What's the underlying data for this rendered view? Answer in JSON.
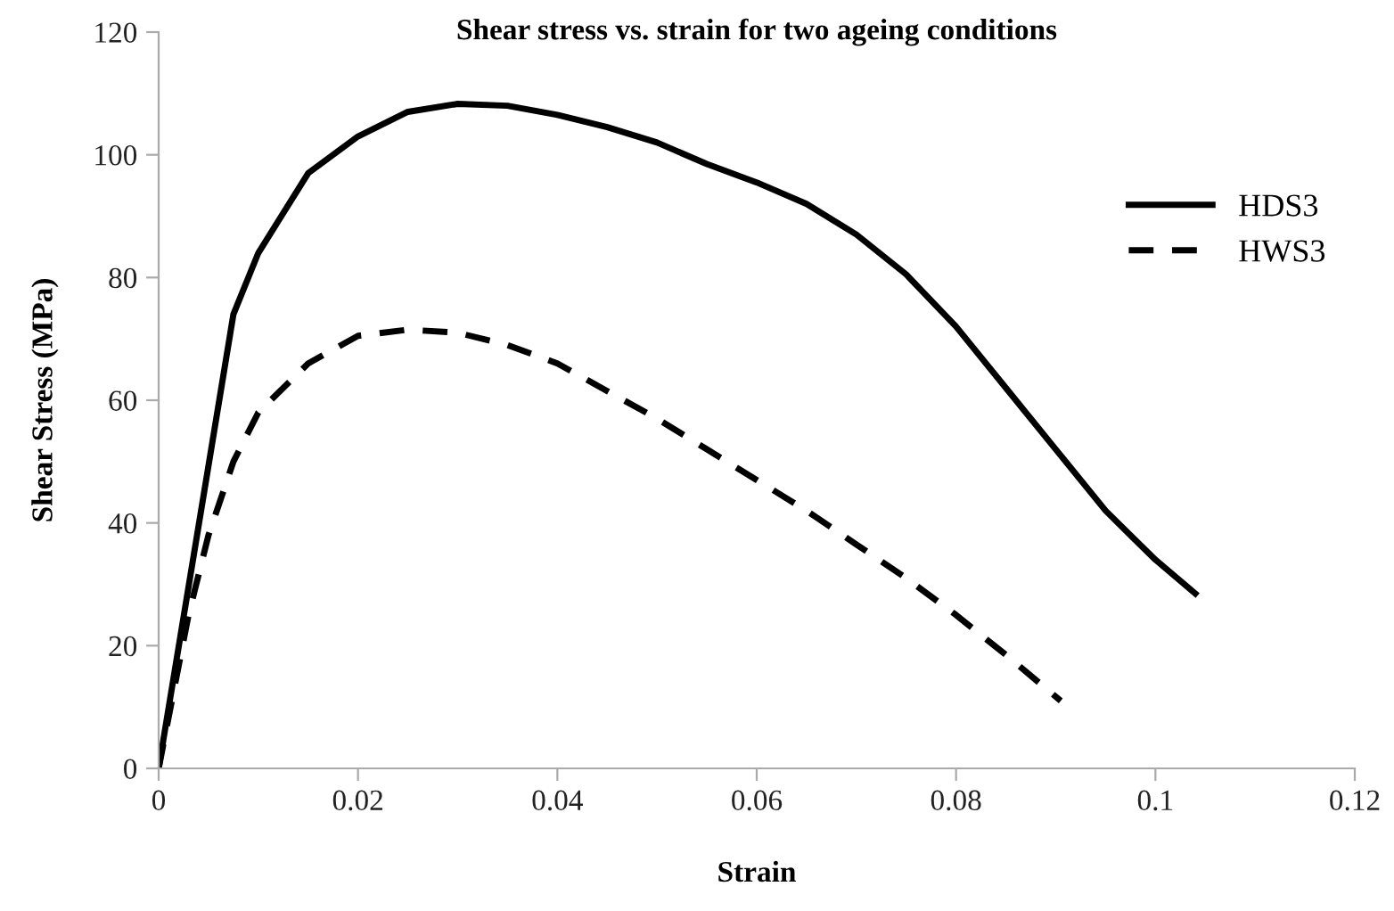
{
  "chart_data": {
    "type": "line",
    "title": "Shear stress vs. strain for two ageing conditions",
    "xlabel": "Strain",
    "ylabel": "Shear Stress (MPa)",
    "xlim": [
      0,
      0.12
    ],
    "xticks": [
      0,
      0.02,
      0.04,
      0.06,
      0.08,
      0.1,
      0.12
    ],
    "ylim": [
      0,
      120
    ],
    "yticks": [
      0,
      20,
      40,
      60,
      80,
      100,
      120
    ],
    "grid": false,
    "legend": "right",
    "marker": "none",
    "series": [
      {
        "name": "HDS3",
        "color": "#000000",
        "line_style": "solid",
        "x": [
          0,
          0.0075,
          0.01,
          0.015,
          0.02,
          0.025,
          0.03,
          0.035,
          0.04,
          0.045,
          0.05,
          0.055,
          0.06,
          0.065,
          0.07,
          0.075,
          0.08,
          0.085,
          0.09,
          0.095,
          0.1,
          0.104
        ],
        "values": [
          0,
          74,
          84,
          97,
          103,
          107,
          108.3,
          108,
          106.5,
          104.5,
          102,
          98.5,
          95.5,
          92,
          87,
          80.5,
          72,
          62,
          52,
          42,
          34,
          28.5
        ]
      },
      {
        "name": "HWS3",
        "color": "#000000",
        "line_style": "dashed",
        "x": [
          0,
          0.003,
          0.005,
          0.0075,
          0.01,
          0.015,
          0.02,
          0.025,
          0.03,
          0.035,
          0.04,
          0.045,
          0.05,
          0.055,
          0.06,
          0.065,
          0.07,
          0.075,
          0.08,
          0.085,
          0.0905
        ],
        "values": [
          0,
          25,
          38,
          50,
          58,
          66,
          70.5,
          71.5,
          71,
          69,
          66,
          61.5,
          57,
          52,
          47,
          42,
          36.5,
          31,
          25,
          18.5,
          11
        ]
      }
    ]
  }
}
